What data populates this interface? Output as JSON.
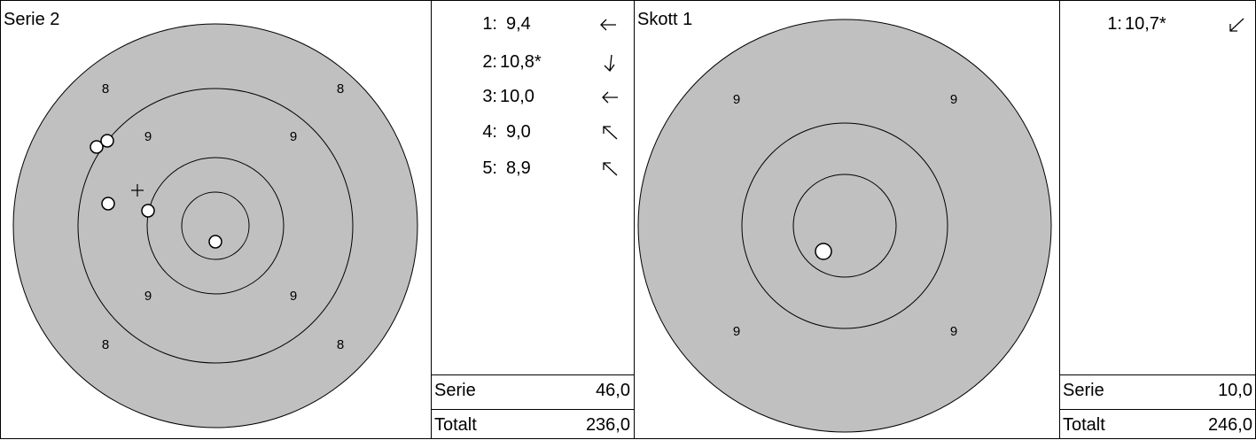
{
  "left": {
    "title": "Serie 2",
    "ring_numbers": [
      "8",
      "8",
      "9",
      "9",
      "9",
      "9",
      "8",
      "8"
    ],
    "shots": [
      {
        "num": "1:",
        "value": "9,4",
        "direction": "arrow-left-icon"
      },
      {
        "num": "2:",
        "value": "10,8*",
        "direction": "arrow-down-icon"
      },
      {
        "num": "3:",
        "value": "10,0",
        "direction": "arrow-left-icon"
      },
      {
        "num": "4:",
        "value": "9,0",
        "direction": "arrow-up-left-icon"
      },
      {
        "num": "5:",
        "value": "8,9",
        "direction": "arrow-up-left-icon"
      }
    ],
    "series_label": "Serie",
    "series_value": "46,0",
    "total_label": "Totalt",
    "total_value": "236,0"
  },
  "right": {
    "title": "Skott 1",
    "ring_numbers": [
      "9",
      "9",
      "9",
      "9"
    ],
    "shots": [
      {
        "num": "1:",
        "value": "10,7*",
        "direction": "arrow-down-left-icon"
      }
    ],
    "series_label": "Serie",
    "series_value": "10,0",
    "total_label": "Totalt",
    "total_value": "246,0"
  },
  "colors": {
    "target_fill": "#c0c0c0",
    "line": "#000000",
    "shot_fill": "#ffffff"
  }
}
